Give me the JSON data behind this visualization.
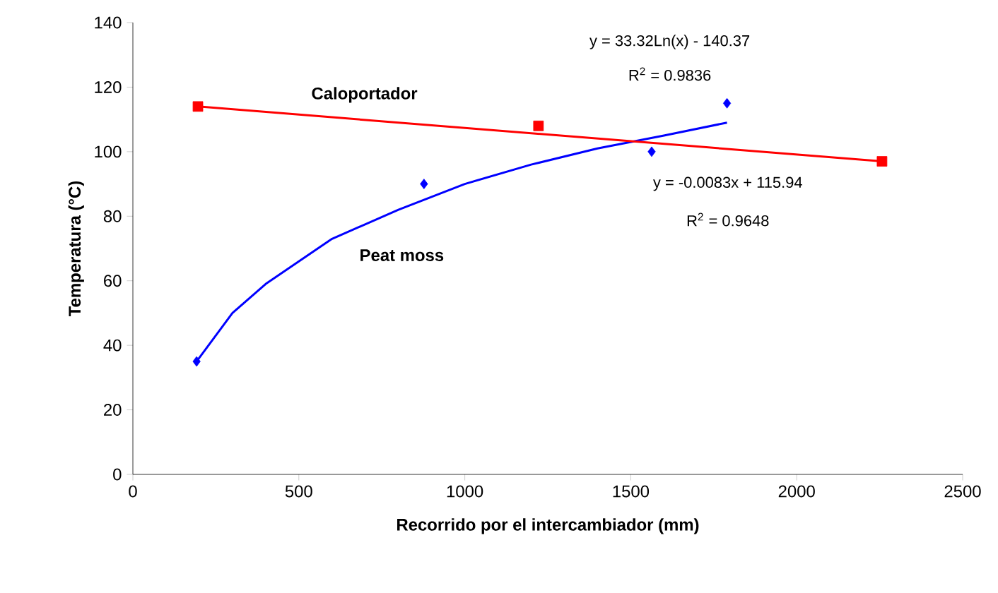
{
  "chart_data": {
    "type": "scatter",
    "xlabel": "Recorrido por el intercambiador (mm)",
    "ylabel": "Temperatura (°C)",
    "series": [
      {
        "color": "#0000ff",
        "marker": "diamond",
        "x": [
          192,
          877,
          1563,
          1790
        ],
        "values": [
          35,
          90,
          100,
          115
        ]
      },
      {
        "color": "#ff0000",
        "marker": "square",
        "x": [
          196,
          1222,
          2257
        ],
        "values": [
          114,
          108,
          97
        ]
      },
      {
        "type": "line",
        "name": "Peat moss",
        "color": "#0000ff",
        "marker": "none",
        "x": [
          192,
          300,
          400,
          600,
          800,
          1000,
          1200,
          1400,
          1600,
          1790
        ],
        "values": [
          35,
          50,
          59,
          73,
          82,
          90,
          96,
          101,
          105,
          109
        ]
      },
      {
        "type": "line",
        "name": "Caloportador",
        "color": "#ff0000",
        "marker": "none",
        "x": [
          196,
          2257
        ],
        "values": [
          114,
          97
        ]
      }
    ],
    "annotations": [
      "y = 33.32Ln(x) - 140.37",
      "R$^{2}$ = 0.9836",
      "y = -0.0083x + 115.94",
      "R$^{2}$ = 0.9648"
    ],
    "xlim": [
      0,
      2500
    ],
    "xticks": [
      0,
      500,
      1000,
      1500,
      2000,
      2500
    ],
    "ylim": [
      0,
      140
    ],
    "yticks": [
      0,
      20,
      40,
      60,
      80,
      100,
      120,
      140
    ],
    "grid": false
  }
}
